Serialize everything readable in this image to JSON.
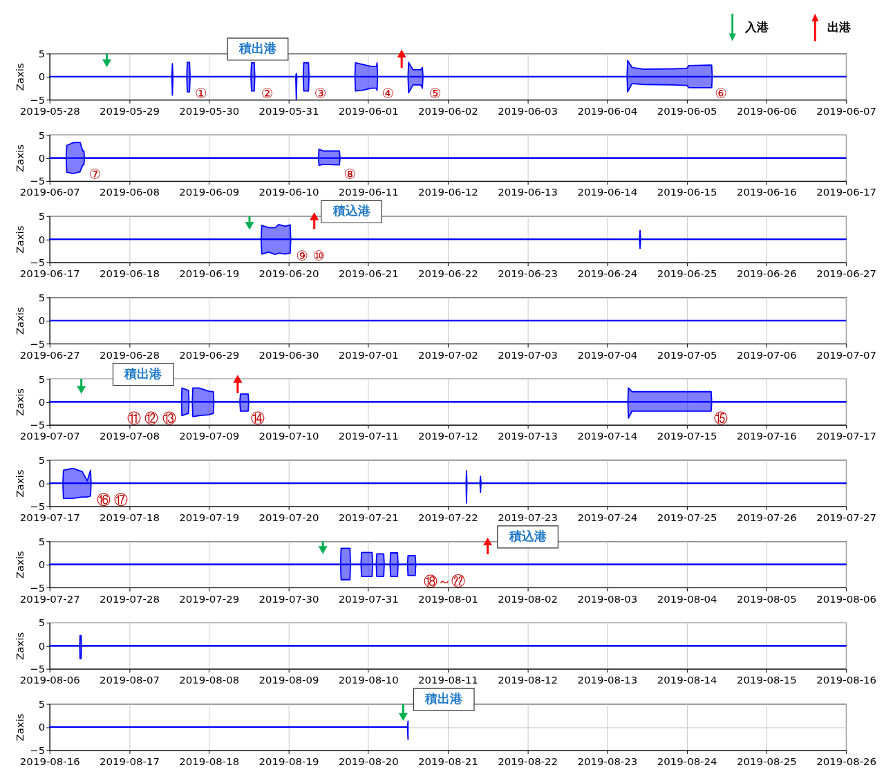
{
  "chart_data": [
    {
      "type": "line",
      "ylabel": "Zaxis",
      "xlim": [
        "2019-05-28",
        "2019-06-07"
      ],
      "xticks": [
        "2019-05-28",
        "2019-05-29",
        "2019-05-30",
        "2019-05-31",
        "2019-06-01",
        "2019-06-02",
        "2019-06-03",
        "2019-06-04",
        "2019-06-05",
        "2019-06-06",
        "2019-06-07"
      ],
      "ylim": [
        -5,
        5
      ],
      "yticks": [
        -5,
        0,
        5
      ],
      "grid": true,
      "legend": "top right",
      "series": [
        {
          "color": "#0000ff",
          "x": [
            "2019-05-28T00:00",
            "2019-05-29T12:50",
            "2019-05-29T13:00",
            "2019-05-29T13:10",
            "2019-05-29T17:20",
            "2019-05-29T17:30",
            "2019-05-29T18:10",
            "2019-05-29T18:20",
            "2019-05-30T12:40",
            "2019-05-30T12:50",
            "2019-05-30T13:40",
            "2019-05-30T13:50",
            "2019-05-31T02:10",
            "2019-05-31T02:20",
            "2019-05-31T02:30",
            "2019-05-31T04:25",
            "2019-05-31T04:35",
            "2019-05-31T06:00",
            "2019-05-31T06:10",
            "2019-05-31T20:00",
            "2019-05-31T20:10",
            "2019-05-31T22:00",
            "2019-06-01T01:00",
            "2019-06-01T02:30",
            "2019-06-01T02:40",
            "2019-06-01T02:50",
            "2019-06-01T12:00",
            "2019-06-01T12:10",
            "2019-06-01T13:30",
            "2019-06-01T15:50",
            "2019-06-01T16:20",
            "2019-06-01T16:30",
            "2019-06-04T06:00",
            "2019-06-04T06:10",
            "2019-06-04T07:30",
            "2019-06-04T11:00",
            "2019-06-04T20:00",
            "2019-06-05T00:00",
            "2019-06-05T00:40",
            "2019-06-05T07:30",
            "2019-06-05T07:40",
            "2019-06-07T00:00"
          ],
          "values": [
            0,
            0,
            0,
            0,
            0,
            0,
            0,
            0,
            0,
            0,
            0,
            0,
            0,
            0,
            0,
            0,
            0,
            0,
            0,
            0,
            0,
            0,
            0,
            0,
            0,
            0,
            0,
            0,
            0,
            0,
            0,
            0,
            0,
            0,
            0,
            0,
            0,
            0,
            0,
            0,
            0,
            0
          ],
          "lower": [
            0,
            0,
            -4.0,
            0,
            0,
            -3.3,
            -3.3,
            0,
            0,
            -3.1,
            -3.1,
            0,
            0,
            -4.9,
            0,
            0,
            -3.1,
            -3.1,
            0,
            0,
            -3.1,
            -3.0,
            -2.5,
            -2.5,
            -3.0,
            0,
            0,
            -3.5,
            -1.8,
            -1.8,
            -2.5,
            0,
            0,
            -3.3,
            -1.5,
            -1.7,
            -1.8,
            -1.9,
            -2.4,
            -2.4,
            0,
            0
          ],
          "upper": [
            0,
            0,
            2.8,
            0,
            0,
            3.1,
            3.1,
            0,
            0,
            3.0,
            3.0,
            0,
            0,
            0.7,
            0,
            0,
            3.0,
            3.0,
            0,
            0,
            3.0,
            2.7,
            2.2,
            2.2,
            3.0,
            0,
            0,
            3.1,
            1.5,
            1.5,
            2.0,
            0,
            0,
            3.5,
            2.0,
            1.6,
            1.7,
            1.8,
            2.4,
            2.5,
            0,
            0
          ]
        },
        {
          "type": "scatter",
          "name": "入港",
          "color": "#00b050",
          "x": [
            "2019-05-28T17:14"
          ],
          "values": [
            2.9
          ],
          "errors": [
            [
              2.9,
              5
            ]
          ]
        },
        {
          "type": "scatter",
          "name": "出港",
          "color": "#ff0000",
          "x": [
            "2019-06-01T10:05"
          ],
          "values": [
            5
          ],
          "errors": [
            [
              1.9,
              5
            ]
          ]
        }
      ],
      "annotations": [
        {
          "text": "積出港",
          "x": "2019-05-30T03:56",
          "y": 0
        },
        {
          "text": "①",
          "x": "2019-05-29T21:40",
          "y": 0
        },
        {
          "text": "②",
          "x": "2019-05-30T17:36",
          "y": 0
        },
        {
          "text": "③",
          "x": "2019-05-31T09:36",
          "y": 0
        },
        {
          "text": "④",
          "x": "2019-06-01T06:00",
          "y": 0
        },
        {
          "text": "⑤",
          "x": "2019-06-01T20:10",
          "y": 0
        },
        {
          "text": "⑥",
          "x": "2019-06-05T10:20",
          "y": 0
        }
      ]
    },
    {
      "type": "line",
      "ylabel": "Zaxis",
      "xlim": [
        "2019-06-07",
        "2019-06-17"
      ],
      "xticks": [
        "2019-06-07",
        "2019-06-08",
        "2019-06-09",
        "2019-06-10",
        "2019-06-11",
        "2019-06-12",
        "2019-06-13",
        "2019-06-14",
        "2019-06-15",
        "2019-06-16",
        "2019-06-17"
      ],
      "ylim": [
        -5,
        5
      ],
      "yticks": [
        -5,
        0,
        5
      ],
      "grid": true,
      "series": [
        {
          "color": "#0000ff",
          "x": [
            "2019-06-07T00:00",
            "2019-06-07T05:00",
            "2019-06-07T05:10",
            "2019-06-07T07:00",
            "2019-06-07T09:10",
            "2019-06-07T10:00",
            "2019-06-07T10:20",
            "2019-06-07T10:30",
            "2019-06-10T09:00",
            "2019-06-10T09:10",
            "2019-06-10T10:30",
            "2019-06-10T15:20",
            "2019-06-10T15:30",
            "2019-06-17T00:00"
          ],
          "values": [
            0,
            0,
            0,
            0,
            0,
            0,
            0,
            0,
            0,
            0,
            0,
            0,
            0,
            0
          ],
          "lower": [
            0,
            0,
            -3.1,
            -3.4,
            -3.0,
            -1.5,
            -1.5,
            0,
            0,
            -1.6,
            -1.4,
            -1.5,
            0,
            0
          ],
          "upper": [
            0,
            0,
            2.7,
            3.3,
            3.4,
            1.5,
            1.5,
            0,
            0,
            1.9,
            1.5,
            1.5,
            0,
            0
          ]
        }
      ],
      "annotations": [
        {
          "text": "⑦",
          "x": "2019-06-07T13:42",
          "y": 0
        },
        {
          "text": "⑧",
          "x": "2019-06-10T18:30",
          "y": 0
        }
      ]
    },
    {
      "type": "line",
      "ylabel": "Zaxis",
      "xlim": [
        "2019-06-17",
        "2019-06-27"
      ],
      "xticks": [
        "2019-06-17",
        "2019-06-18",
        "2019-06-19",
        "2019-06-20",
        "2019-06-21",
        "2019-06-22",
        "2019-06-23",
        "2019-06-24",
        "2019-06-25",
        "2019-06-26",
        "2019-06-27"
      ],
      "ylim": [
        -5,
        5
      ],
      "yticks": [
        -5,
        0,
        5
      ],
      "grid": true,
      "series": [
        {
          "color": "#0000ff",
          "x": [
            "2019-06-17T00:00",
            "2019-06-19T15:45",
            "2019-06-19T15:55",
            "2019-06-19T18:00",
            "2019-06-19T20:00",
            "2019-06-19T21:00",
            "2019-06-19T23:00",
            "2019-06-20T00:30",
            "2019-06-20T00:40",
            "2019-06-24T09:45",
            "2019-06-24T09:55",
            "2019-06-24T10:05",
            "2019-06-27T00:00"
          ],
          "values": [
            0,
            0,
            0,
            0,
            0,
            0,
            0,
            0,
            0,
            0,
            0,
            0,
            0
          ],
          "lower": [
            0,
            0,
            -3.2,
            -2.8,
            -3.3,
            -3.0,
            -3.2,
            -3.0,
            0,
            0,
            -2.0,
            0,
            0
          ],
          "upper": [
            0,
            0,
            3.0,
            2.5,
            2.5,
            3.2,
            2.8,
            3.1,
            0,
            0,
            1.9,
            0,
            0
          ]
        },
        {
          "type": "scatter",
          "color": "#00b050",
          "x": [
            "2019-06-19T12:14"
          ],
          "values": [
            2.9
          ],
          "errors": [
            [
              2.9,
              5
            ]
          ]
        },
        {
          "type": "scatter",
          "color": "#ff0000",
          "x": [
            "2019-06-20T07:45"
          ],
          "values": [
            5
          ],
          "errors": [
            [
              2.2,
              5
            ]
          ]
        }
      ],
      "annotations": [
        {
          "text": "積込港",
          "x": "2019-06-20T08:10",
          "y": 0
        },
        {
          "text": "⑨",
          "x": "2019-06-20T04:05",
          "y": 0
        },
        {
          "text": "⑩",
          "x": "2019-06-20T09:10",
          "y": 0
        }
      ]
    },
    {
      "type": "line",
      "ylabel": "Zaxis",
      "xlim": [
        "2019-06-27",
        "2019-07-07"
      ],
      "xticks": [
        "2019-06-27",
        "2019-06-28",
        "2019-06-29",
        "2019-06-30",
        "2019-07-01",
        "2019-07-02",
        "2019-07-03",
        "2019-07-04",
        "2019-07-05",
        "2019-07-06",
        "2019-07-07"
      ],
      "ylim": [
        -5,
        5
      ],
      "yticks": [
        -5,
        0,
        5
      ],
      "grid": true,
      "series": [
        {
          "color": "#0000ff",
          "x": [
            "2019-06-27T00:00",
            "2019-07-07T00:00"
          ],
          "values": [
            0,
            0
          ]
        }
      ]
    },
    {
      "type": "line",
      "ylabel": "Zaxis",
      "xlim": [
        "2019-07-07",
        "2019-07-17"
      ],
      "xticks": [
        "2019-07-07",
        "2019-07-08",
        "2019-07-09",
        "2019-07-10",
        "2019-07-11",
        "2019-07-12",
        "2019-07-13",
        "2019-07-14",
        "2019-07-15",
        "2019-07-16",
        "2019-07-17"
      ],
      "ylim": [
        -5,
        5
      ],
      "yticks": [
        -5,
        0,
        5
      ],
      "grid": true,
      "series": [
        {
          "color": "#0000ff",
          "x": [
            "2019-07-07T00:00",
            "2019-07-08T15:45",
            "2019-07-08T15:52",
            "2019-07-08T17:50",
            "2019-07-08T18:00",
            "2019-07-08T19:00",
            "2019-07-08T19:10",
            "2019-07-08T21:00",
            "2019-07-09T00:00",
            "2019-07-09T01:20",
            "2019-07-09T01:30",
            "2019-07-09T09:20",
            "2019-07-09T09:30",
            "2019-07-09T11:50",
            "2019-07-09T12:00",
            "2019-07-14T06:15",
            "2019-07-14T06:25",
            "2019-07-14T07:30",
            "2019-07-15T07:20",
            "2019-07-15T07:30",
            "2019-07-17T00:00"
          ],
          "values": [
            0,
            0,
            0,
            0,
            0,
            0,
            0,
            0,
            0,
            0,
            0,
            0,
            0,
            0,
            0,
            0,
            0,
            0,
            0,
            0,
            0
          ],
          "lower": [
            0,
            0,
            -3.0,
            -2.5,
            0,
            0,
            -3.2,
            -3.0,
            -2.8,
            -2.5,
            0,
            0,
            -2.0,
            -2.0,
            0,
            0,
            -3.5,
            -2.0,
            -2.0,
            0,
            0
          ],
          "upper": [
            0,
            0,
            3.0,
            2.5,
            0,
            0,
            3.0,
            3.0,
            2.3,
            2.2,
            0,
            0,
            1.7,
            1.7,
            0,
            0,
            3.0,
            2.2,
            2.2,
            0,
            0
          ]
        },
        {
          "type": "scatter",
          "color": "#00b050",
          "x": [
            "2019-07-07T09:33"
          ],
          "values": [
            2.6
          ],
          "errors": [
            [
              2.6,
              5
            ]
          ]
        },
        {
          "type": "scatter",
          "color": "#ff0000",
          "x": [
            "2019-07-09T08:40"
          ],
          "values": [
            5
          ],
          "errors": [
            [
              1.9,
              5
            ]
          ]
        }
      ],
      "annotations": [
        {
          "text": "積出港",
          "x": "2019-07-07T17:26",
          "y": 0
        },
        {
          "text": "⑪",
          "x": "2019-07-08T01:32",
          "y": 0
        },
        {
          "text": "⑫",
          "x": "2019-07-08T06:44",
          "y": 0
        },
        {
          "text": "⑬",
          "x": "2019-07-08T12:07",
          "y": 0
        },
        {
          "text": "⑭",
          "x": "2019-07-09T14:42",
          "y": 0
        },
        {
          "text": "⑮",
          "x": "2019-07-15T10:14",
          "y": 0
        }
      ]
    },
    {
      "type": "line",
      "ylabel": "Zaxis",
      "xlim": [
        "2019-07-17",
        "2019-07-27"
      ],
      "xticks": [
        "2019-07-17",
        "2019-07-18",
        "2019-07-19",
        "2019-07-20",
        "2019-07-21",
        "2019-07-22",
        "2019-07-23",
        "2019-07-24",
        "2019-07-25",
        "2019-07-26",
        "2019-07-27"
      ],
      "ylim": [
        -5,
        5
      ],
      "yticks": [
        -5,
        0,
        5
      ],
      "grid": true,
      "series": [
        {
          "color": "#0000ff",
          "x": [
            "2019-07-17T00:00",
            "2019-07-17T04:00",
            "2019-07-17T04:10",
            "2019-07-17T07:00",
            "2019-07-17T09:50",
            "2019-07-17T11:20",
            "2019-07-17T12:20",
            "2019-07-17T12:30",
            "2019-07-22T05:30",
            "2019-07-22T05:37",
            "2019-07-22T05:45",
            "2019-07-22T09:40",
            "2019-07-22T09:50",
            "2019-07-22T10:00",
            "2019-07-27T00:00"
          ],
          "values": [
            0,
            0,
            0,
            0,
            0,
            0,
            0,
            0,
            0,
            0,
            0,
            0,
            0,
            0,
            0
          ],
          "lower": [
            0,
            0,
            -3.3,
            -3.3,
            -3.0,
            -3.0,
            -2.8,
            0,
            0,
            -4.3,
            0,
            0,
            -2.0,
            0,
            0
          ],
          "upper": [
            0,
            0,
            2.8,
            3.2,
            2.5,
            0.5,
            2.8,
            0,
            0,
            2.7,
            0,
            0,
            1.5,
            0,
            0
          ]
        }
      ],
      "annotations": [
        {
          "text": "⑯",
          "x": "2019-07-17T16:12",
          "y": 0
        },
        {
          "text": "⑰",
          "x": "2019-07-17T21:36",
          "y": 0
        }
      ]
    },
    {
      "type": "line",
      "ylabel": "Zaxis",
      "xlim": [
        "2019-07-27",
        "2019-08-06"
      ],
      "xticks": [
        "2019-07-27",
        "2019-07-28",
        "2019-07-29",
        "2019-07-30",
        "2019-07-31",
        "2019-08-01",
        "2019-08-02",
        "2019-08-03",
        "2019-08-04",
        "2019-08-05",
        "2019-08-06"
      ],
      "ylim": [
        -5,
        5
      ],
      "yticks": [
        -5,
        0,
        5
      ],
      "grid": true,
      "series": [
        {
          "color": "#0000ff",
          "x": [
            "2019-07-27T00:00",
            "2019-07-30T15:40",
            "2019-07-30T15:50",
            "2019-07-30T18:30",
            "2019-07-30T18:40",
            "2019-07-30T21:50",
            "2019-07-30T22:00",
            "2019-07-31T01:10",
            "2019-07-31T01:20",
            "2019-07-31T02:25",
            "2019-07-31T02:35",
            "2019-07-31T04:40",
            "2019-07-31T04:50",
            "2019-07-31T06:35",
            "2019-07-31T06:45",
            "2019-07-31T08:50",
            "2019-07-31T09:00",
            "2019-07-31T11:50",
            "2019-07-31T12:00",
            "2019-07-31T14:10",
            "2019-07-31T14:20",
            "2019-08-06T00:00"
          ],
          "values": [
            0,
            0,
            0,
            0,
            0,
            0,
            0,
            0,
            0,
            0,
            0,
            0,
            0,
            0,
            0,
            0,
            0,
            0,
            0,
            0,
            0,
            0
          ],
          "lower": [
            0,
            0,
            -3.3,
            -3.3,
            0,
            0,
            -2.6,
            -2.6,
            0,
            0,
            -2.6,
            -2.6,
            0,
            0,
            -2.6,
            -2.6,
            0,
            0,
            -2.4,
            -2.4,
            0,
            0
          ],
          "upper": [
            0,
            0,
            3.5,
            3.5,
            0,
            0,
            2.6,
            2.6,
            0,
            0,
            2.3,
            2.3,
            0,
            0,
            2.5,
            2.5,
            0,
            0,
            1.9,
            1.9,
            0,
            0
          ]
        },
        {
          "type": "scatter",
          "color": "#00b050",
          "x": [
            "2019-07-30T10:20"
          ],
          "values": [
            3.1
          ],
          "errors": [
            [
              3.1,
              5
            ]
          ]
        },
        {
          "type": "scatter",
          "color": "#ff0000",
          "x": [
            "2019-08-01T12:00"
          ],
          "values": [
            5
          ],
          "errors": [
            [
              2.2,
              5
            ]
          ]
        }
      ],
      "annotations": [
        {
          "text": "積込港",
          "x": "2019-08-01T13:17",
          "y": 0
        },
        {
          "text": "⑱～㉒",
          "x": "2019-07-31T23:00",
          "y": 0
        }
      ]
    },
    {
      "type": "line",
      "ylabel": "Zaxis",
      "xlim": [
        "2019-08-06",
        "2019-08-16"
      ],
      "xticks": [
        "2019-08-06",
        "2019-08-07",
        "2019-08-08",
        "2019-08-09",
        "2019-08-10",
        "2019-08-11",
        "2019-08-12",
        "2019-08-13",
        "2019-08-14",
        "2019-08-15",
        "2019-08-16"
      ],
      "ylim": [
        -5,
        5
      ],
      "yticks": [
        -5,
        0,
        5
      ],
      "grid": true,
      "series": [
        {
          "color": "#0000ff",
          "x": [
            "2019-08-06T00:00",
            "2019-08-06T09:05",
            "2019-08-06T09:10",
            "2019-08-06T09:30",
            "2019-08-06T09:35",
            "2019-08-16T00:00"
          ],
          "values": [
            0,
            0,
            0,
            0,
            0,
            0
          ],
          "lower": [
            0,
            0,
            -2.8,
            -2.8,
            0,
            0
          ],
          "upper": [
            0,
            0,
            2.2,
            2.2,
            0,
            0
          ]
        }
      ]
    },
    {
      "type": "line",
      "ylabel": "Zaxis",
      "xlim": [
        "2019-08-16",
        "2019-08-26"
      ],
      "xticks": [
        "2019-08-16",
        "2019-08-17",
        "2019-08-18",
        "2019-08-19",
        "2019-08-20",
        "2019-08-21",
        "2019-08-22",
        "2019-08-23",
        "2019-08-24",
        "2019-08-25",
        "2019-08-26"
      ],
      "ylim": [
        -5,
        5
      ],
      "yticks": [
        -5,
        0,
        5
      ],
      "grid": true,
      "series": [
        {
          "color": "#0000ff",
          "x": [
            "2019-08-16T00:00",
            "2019-08-20T11:50",
            "2019-08-20T12:00"
          ],
          "values": [
            0,
            0,
            0
          ],
          "lower": [
            0,
            0,
            -2.7
          ],
          "upper": [
            0,
            0,
            1.3
          ]
        },
        {
          "type": "scatter",
          "color": "#00b050",
          "x": [
            "2019-08-20T10:33"
          ],
          "values": [
            2.2
          ],
          "errors": [
            [
              2.2,
              5
            ]
          ]
        }
      ],
      "annotations": [
        {
          "text": "積出港",
          "x": "2019-08-20T12:00",
          "y": 0
        }
      ]
    }
  ]
}
